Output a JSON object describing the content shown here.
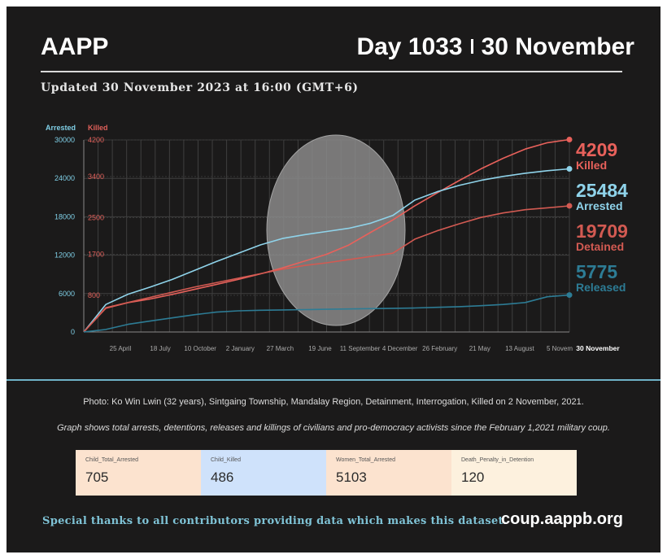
{
  "header": {
    "brand": "AAPP",
    "day": "Day 1033",
    "date": "30 November",
    "updated": "Updated 30 November 2023 at 16:00 (GMT+6)"
  },
  "chart_data": {
    "type": "line",
    "x_tick_labels": [
      "25 April",
      "18 July",
      "10 October",
      "2 January",
      "27 March",
      "19 June",
      "11 September",
      "4 December",
      "26 February",
      "21 May",
      "13 August",
      "5 Novem",
      "30 November"
    ],
    "left_axis": {
      "label": "Arrested",
      "color": "#7fcfe6",
      "ticks": [
        0,
        6000,
        12000,
        18000,
        24000,
        30000
      ],
      "range": [
        0,
        30000
      ]
    },
    "right_axis": {
      "label": "Killed",
      "color": "#e0605a",
      "ticks": [
        800,
        1700,
        2500,
        3400,
        4200
      ],
      "range": [
        0,
        4200
      ]
    },
    "grid": true,
    "series": [
      {
        "name": "Killed",
        "axis": "right",
        "color": "#e8615b",
        "end_value": "4209",
        "values": [
          0,
          520,
          640,
          720,
          820,
          930,
          1040,
          1150,
          1270,
          1400,
          1550,
          1700,
          1900,
          2180,
          2450,
          2760,
          3040,
          3310,
          3570,
          3800,
          4000,
          4140,
          4209
        ]
      },
      {
        "name": "Arrested",
        "axis": "left",
        "color": "#8fd3ea",
        "end_value": "25484",
        "values": [
          0,
          4300,
          5900,
          7000,
          8200,
          9600,
          11000,
          12300,
          13600,
          14600,
          15200,
          15700,
          16200,
          17000,
          18200,
          20600,
          21900,
          22900,
          23700,
          24300,
          24800,
          25200,
          25484
        ]
      },
      {
        "name": "Detained",
        "axis": "left",
        "color": "#d25a52",
        "end_value": "19709",
        "values": [
          0,
          3800,
          4600,
          5400,
          6200,
          7000,
          7700,
          8400,
          9100,
          9800,
          10400,
          10800,
          11300,
          11800,
          12300,
          14500,
          15800,
          16900,
          17900,
          18600,
          19100,
          19400,
          19709
        ]
      },
      {
        "name": "Released",
        "axis": "left",
        "color": "#2d7c95",
        "end_value": "5775",
        "values": [
          0,
          400,
          1200,
          1700,
          2200,
          2700,
          3100,
          3300,
          3400,
          3450,
          3500,
          3550,
          3600,
          3650,
          3700,
          3750,
          3850,
          3950,
          4100,
          4300,
          4600,
          5500,
          5775
        ]
      }
    ]
  },
  "chart_labels": {
    "left_axis_label": "Arrested",
    "right_axis_label": "Killed",
    "left_ticks": [
      "0",
      "6000",
      "12000",
      "18000",
      "24000",
      "30000"
    ],
    "right_ticks": [
      "800",
      "1700",
      "2500",
      "3400",
      "4200"
    ],
    "end_labels": [
      {
        "value": "4209",
        "name": "Killed"
      },
      {
        "value": "25484",
        "name": "Arrested"
      },
      {
        "value": "19709",
        "name": "Detained"
      },
      {
        "value": "5775",
        "name": "Released"
      }
    ]
  },
  "captions": {
    "photo": "Photo: Ko Win Lwin (32 years), Sintgaing Township, Mandalay Region, Detainment, Interrogation, Killed on 2 November, 2021.",
    "graph": "Graph shows total arrests, detentions, releases and killings of civilians and pro-democracy activists since the February 1,2021 military coup."
  },
  "stats": [
    {
      "label": "Child_Total_Arrested",
      "value": "705",
      "bg": "#fce3cf"
    },
    {
      "label": "Child_Killed",
      "value": "486",
      "bg": "#cfe2fb"
    },
    {
      "label": "Women_Total_Arrested",
      "value": "5103",
      "bg": "#fce3cf"
    },
    {
      "label": "Death_Penalty_in_Detention",
      "value": "120",
      "bg": "#fdf1de"
    }
  ],
  "footer": {
    "thanks": "Special thanks to all contributors providing data which makes this dataset.",
    "website": "coup.aappb.org"
  }
}
